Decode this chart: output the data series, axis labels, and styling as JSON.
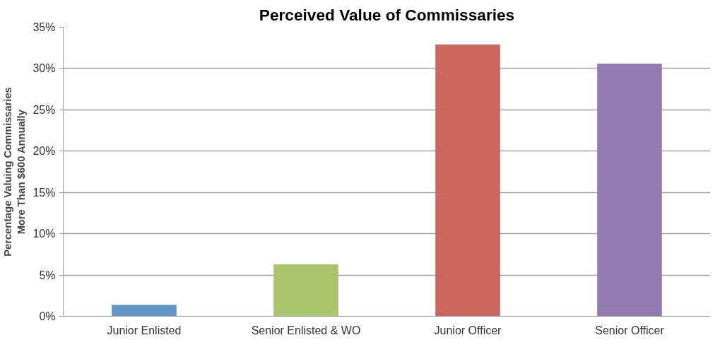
{
  "chart_data": {
    "type": "bar",
    "title": "Perceived Value of Commissaries",
    "ylabel": "Percentage Valuing Commissaries\nMore Than $600 Annually",
    "categories": [
      "Junior Enlisted",
      "Senior Enlisted & WO",
      "Junior Officer",
      "Senior Officer"
    ],
    "values": [
      1.4,
      6.3,
      32.9,
      30.6
    ],
    "colors": [
      "#5f96c7",
      "#aac46b",
      "#cc6760",
      "#927bb1"
    ],
    "ylim": [
      0,
      35
    ],
    "yticks": [
      {
        "value": 0,
        "label": "0%"
      },
      {
        "value": 5,
        "label": "5%"
      },
      {
        "value": 10,
        "label": "10%"
      },
      {
        "value": 15,
        "label": "15%"
      },
      {
        "value": 20,
        "label": "20%"
      },
      {
        "value": 25,
        "label": "25%"
      },
      {
        "value": 30,
        "label": "30%"
      },
      {
        "value": 35,
        "label": "35%"
      }
    ],
    "grid": "y"
  }
}
